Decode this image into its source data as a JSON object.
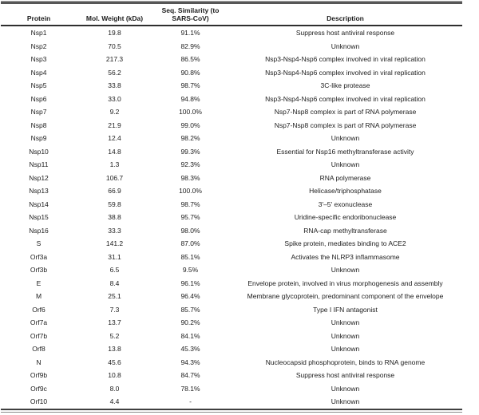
{
  "colors": {
    "text": "#1c1c1c",
    "rule_dark": "#3f3f3f",
    "rule_gray": "#565656",
    "rule_light": "#8d8d8d",
    "background": "#ffffff"
  },
  "table": {
    "columns": [
      {
        "label": "Protein"
      },
      {
        "label": "Mol. Weight (kDa)"
      },
      {
        "label": "Seq. Similarity (to",
        "label2": "SARS-CoV)"
      },
      {
        "label": "Description"
      }
    ],
    "rows": [
      [
        "Nsp1",
        "19.8",
        "91.1%",
        "Suppress host antiviral response"
      ],
      [
        "Nsp2",
        "70.5",
        "82.9%",
        "Unknown"
      ],
      [
        "Nsp3",
        "217.3",
        "86.5%",
        "Nsp3-Nsp4-Nsp6 complex involved in viral replication"
      ],
      [
        "Nsp4",
        "56.2",
        "90.8%",
        "Nsp3-Nsp4-Nsp6 complex involved in viral replication"
      ],
      [
        "Nsp5",
        "33.8",
        "98.7%",
        "3C-like protease"
      ],
      [
        "Nsp6",
        "33.0",
        "94.8%",
        "Nsp3-Nsp4-Nsp6 complex involved in viral replication"
      ],
      [
        "Nsp7",
        "9.2",
        "100.0%",
        "Nsp7-Nsp8 complex is part of RNA polymerase"
      ],
      [
        "Nsp8",
        "21.9",
        "99.0%",
        "Nsp7-Nsp8 complex is part of RNA polymerase"
      ],
      [
        "Nsp9",
        "12.4",
        "98.2%",
        "Unknown"
      ],
      [
        "Nsp10",
        "14.8",
        "99.3%",
        "Essential for Nsp16 methyltransferase activity"
      ],
      [
        "Nsp11",
        "1.3",
        "92.3%",
        "Unknown"
      ],
      [
        "Nsp12",
        "106.7",
        "98.3%",
        "RNA polymerase"
      ],
      [
        "Nsp13",
        "66.9",
        "100.0%",
        "Helicase/triphosphatase"
      ],
      [
        "Nsp14",
        "59.8",
        "98.7%",
        "3'–5' exonuclease"
      ],
      [
        "Nsp15",
        "38.8",
        "95.7%",
        "Uridine-specific endoribonuclease"
      ],
      [
        "Nsp16",
        "33.3",
        "98.0%",
        "RNA-cap methyltransferase"
      ],
      [
        "S",
        "141.2",
        "87.0%",
        "Spike protein, mediates binding to ACE2"
      ],
      [
        "Orf3a",
        "31.1",
        "85.1%",
        "Activates the NLRP3 inflammasome"
      ],
      [
        "Orf3b",
        "6.5",
        "9.5%",
        "Unknown"
      ],
      [
        "E",
        "8.4",
        "96.1%",
        "Envelope protein, involved in virus morphogenesis and assembly"
      ],
      [
        "M",
        "25.1",
        "96.4%",
        "Membrane glycoprotein, predominant component of the envelope"
      ],
      [
        "Orf6",
        "7.3",
        "85.7%",
        "Type I IFN antagonist"
      ],
      [
        "Orf7a",
        "13.7",
        "90.2%",
        "Unknown"
      ],
      [
        "Orf7b",
        "5.2",
        "84.1%",
        "Unknown"
      ],
      [
        "Orf8",
        "13.8",
        "45.3%",
        "Unknown"
      ],
      [
        "N",
        "45.6",
        "94.3%",
        "Nucleocapsid phosphoprotein, binds to RNA genome"
      ],
      [
        "Orf9b",
        "10.8",
        "84.7%",
        "Suppress host antiviral response"
      ],
      [
        "Orf9c",
        "8.0",
        "78.1%",
        "Unknown"
      ],
      [
        "Orf10",
        "4.4",
        "-",
        "Unknown"
      ]
    ]
  }
}
